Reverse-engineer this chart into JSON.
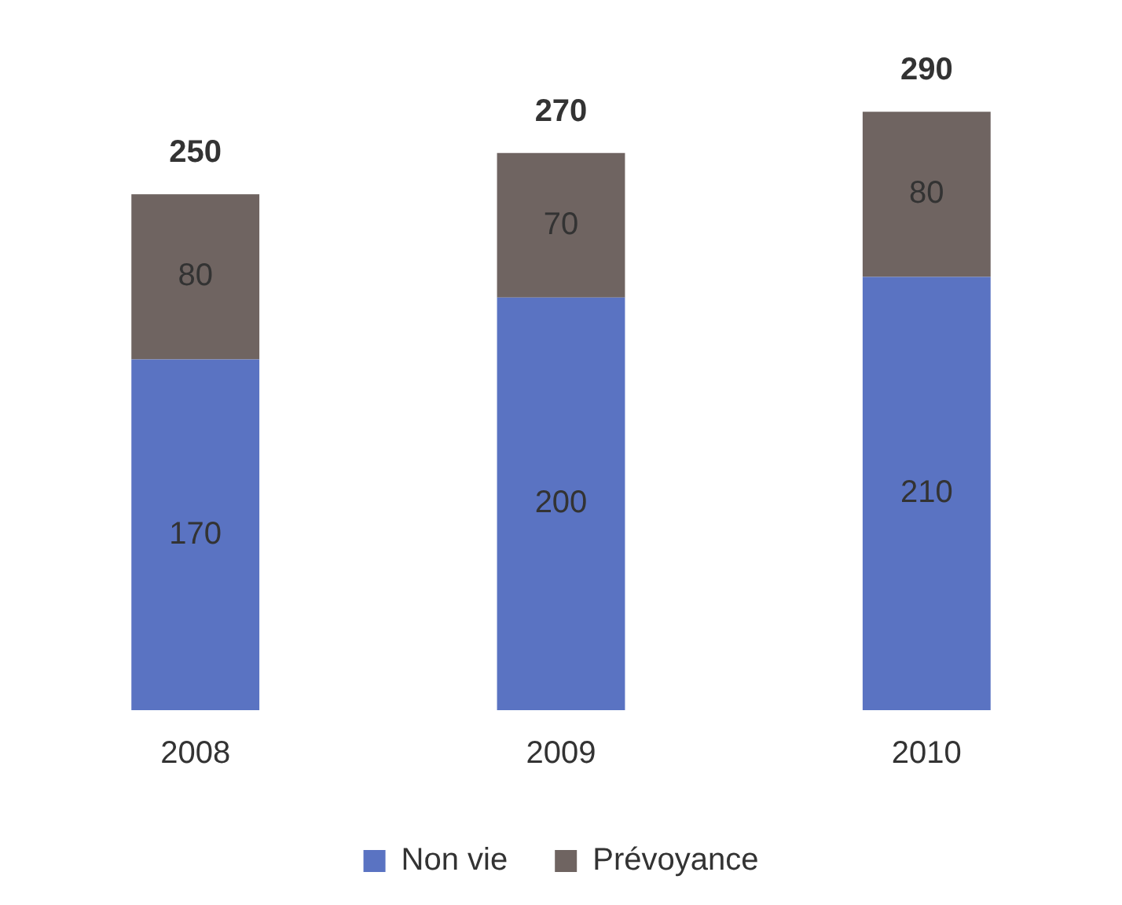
{
  "chart_data": {
    "type": "bar",
    "stacked": true,
    "categories": [
      "2008",
      "2009",
      "2010"
    ],
    "series": [
      {
        "name": "Non vie",
        "color": "#5a73c2",
        "values": [
          170,
          200,
          210
        ]
      },
      {
        "name": "Prévoyance",
        "color": "#6f6461",
        "values": [
          80,
          70,
          80
        ]
      }
    ],
    "data_labels": true,
    "totals": [
      "250",
      "270",
      "290"
    ],
    "legend": "bottom",
    "grid": false
  }
}
